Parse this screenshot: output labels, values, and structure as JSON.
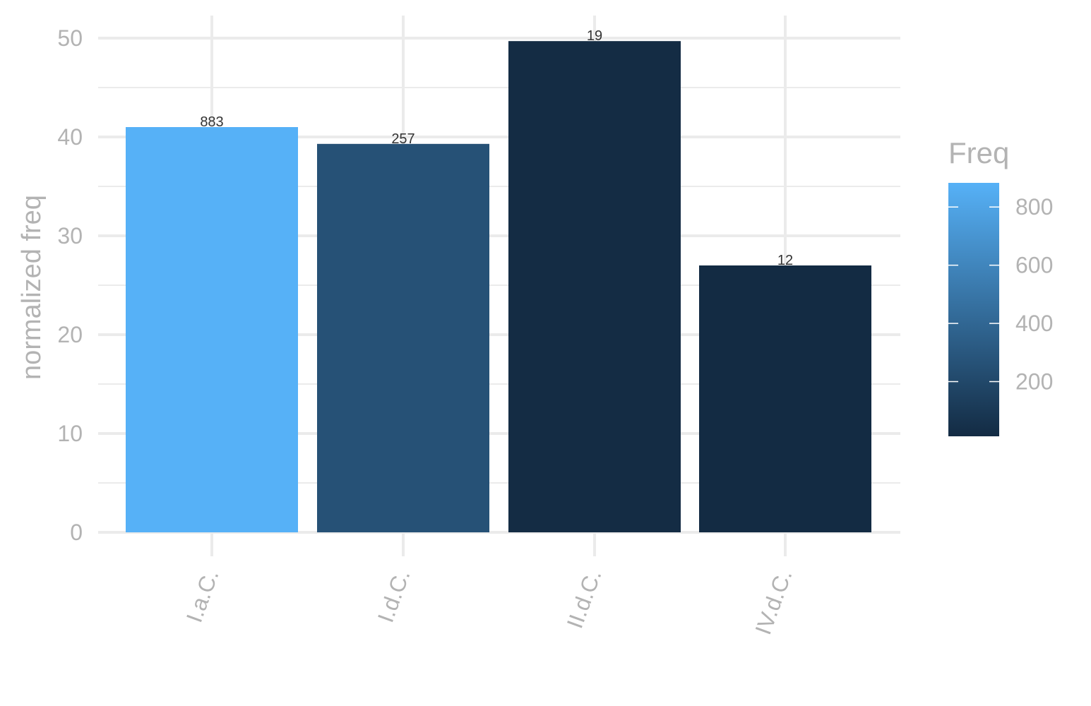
{
  "chart_data": {
    "type": "bar",
    "categories": [
      "I.a.C.",
      "I.d.C.",
      "II.d.C.",
      "IV.d.C."
    ],
    "values": [
      41.0,
      39.3,
      49.7,
      27.0
    ],
    "freq": [
      883,
      257,
      19,
      12
    ],
    "bar_labels": [
      "883",
      "257",
      "19",
      "12"
    ],
    "title": "",
    "xlabel": "",
    "ylabel": "normalized freq",
    "ylim": [
      0,
      50
    ],
    "yticks": [
      0,
      10,
      20,
      30,
      40,
      50
    ],
    "grid": true,
    "legend": {
      "title": "Freq",
      "placement": "right",
      "ticks": [
        200,
        400,
        600,
        800
      ],
      "tick_labels": [
        "200",
        "400",
        "600",
        "800"
      ],
      "range": [
        12,
        883
      ],
      "color_low": "#132B43",
      "color_high": "#56B1F7"
    }
  }
}
